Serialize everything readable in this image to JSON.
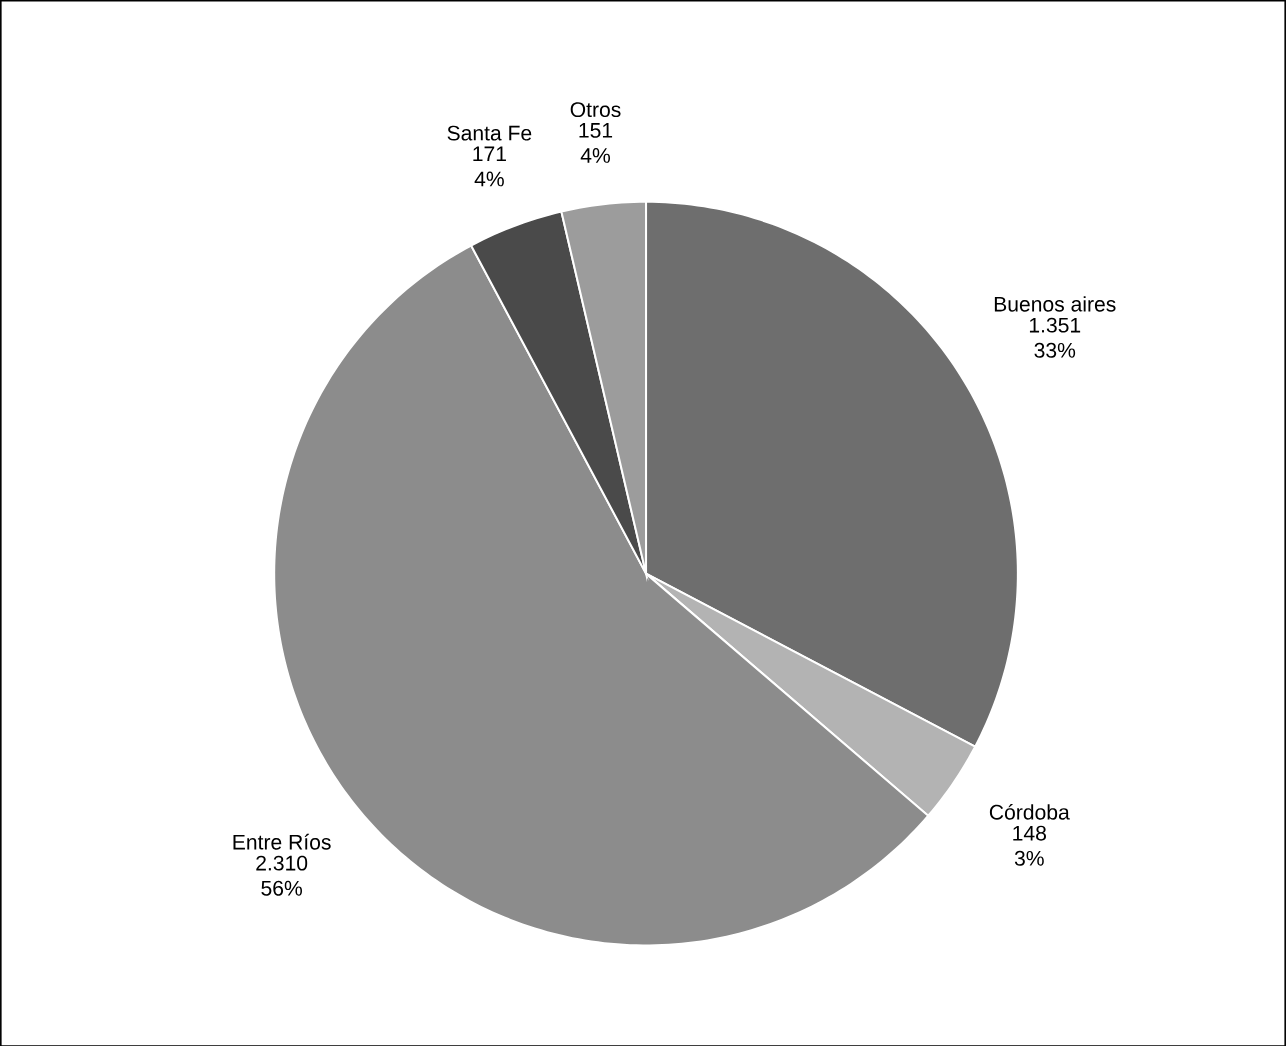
{
  "chart_data": {
    "type": "pie",
    "categories": [
      "Buenos aires",
      "Córdoba",
      "Entre Ríos",
      "Santa Fe",
      "Otros"
    ],
    "values": [
      1351,
      148,
      2310,
      171,
      151
    ],
    "value_labels": [
      "1.351 33%",
      "148 3%",
      "2.310 56%",
      "171 4%",
      "151 4%"
    ],
    "colors": [
      "#6e6e6e",
      "#b3b3b3",
      "#8c8c8c",
      "#4a4a4a",
      "#9c9c9c"
    ]
  }
}
